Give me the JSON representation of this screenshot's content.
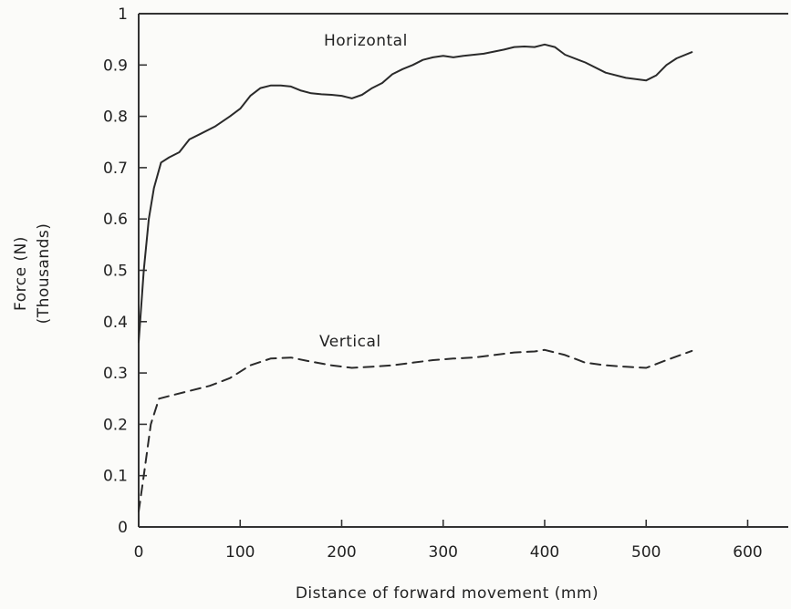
{
  "chart_data": {
    "type": "line",
    "title": "",
    "xlabel": "Distance of forward movement (mm)",
    "ylabel_lines": [
      "Force (N)",
      "(Thousands)"
    ],
    "xlim": [
      0,
      640
    ],
    "ylim": [
      0,
      1
    ],
    "x_ticks": [
      0,
      100,
      200,
      300,
      400,
      500,
      600
    ],
    "x_tick_labels": [
      "0",
      "100",
      "200",
      "300",
      "400",
      "500",
      "600"
    ],
    "y_ticks": [
      0,
      0.1,
      0.2,
      0.3,
      0.4,
      0.5,
      0.6,
      0.7,
      0.8,
      0.9,
      1
    ],
    "y_tick_labels": [
      "0",
      "0.1",
      "0.2",
      "0.3",
      "0.4",
      "0.5",
      "0.6",
      "0.7",
      "0.8",
      "0.9",
      "1"
    ],
    "grid": false,
    "series": [
      {
        "name": "Horizontal",
        "style": "solid",
        "x": [
          0,
          5,
          10,
          15,
          22,
          30,
          40,
          50,
          60,
          75,
          90,
          100,
          110,
          120,
          130,
          140,
          150,
          160,
          170,
          180,
          190,
          200,
          210,
          220,
          230,
          240,
          250,
          260,
          270,
          280,
          290,
          300,
          310,
          320,
          340,
          360,
          370,
          380,
          390,
          400,
          410,
          420,
          440,
          460,
          480,
          500,
          510,
          520,
          530,
          545
        ],
        "y": [
          0.36,
          0.5,
          0.6,
          0.66,
          0.71,
          0.72,
          0.73,
          0.755,
          0.765,
          0.78,
          0.8,
          0.815,
          0.84,
          0.855,
          0.86,
          0.86,
          0.858,
          0.85,
          0.845,
          0.843,
          0.842,
          0.84,
          0.835,
          0.842,
          0.855,
          0.865,
          0.882,
          0.892,
          0.9,
          0.91,
          0.915,
          0.918,
          0.915,
          0.918,
          0.922,
          0.93,
          0.935,
          0.936,
          0.935,
          0.94,
          0.935,
          0.92,
          0.905,
          0.885,
          0.875,
          0.87,
          0.88,
          0.9,
          0.913,
          0.925
        ]
      },
      {
        "name": "Vertical",
        "style": "dashed",
        "x": [
          0,
          5,
          12,
          20,
          30,
          50,
          70,
          90,
          110,
          130,
          150,
          170,
          190,
          210,
          230,
          250,
          270,
          290,
          310,
          330,
          350,
          370,
          390,
          400,
          420,
          440,
          460,
          480,
          500,
          520,
          545
        ],
        "y": [
          0.03,
          0.1,
          0.2,
          0.25,
          0.255,
          0.265,
          0.275,
          0.29,
          0.315,
          0.328,
          0.33,
          0.322,
          0.315,
          0.31,
          0.312,
          0.315,
          0.32,
          0.325,
          0.328,
          0.33,
          0.335,
          0.34,
          0.342,
          0.345,
          0.335,
          0.32,
          0.315,
          0.312,
          0.31,
          0.325,
          0.343
        ]
      }
    ]
  }
}
